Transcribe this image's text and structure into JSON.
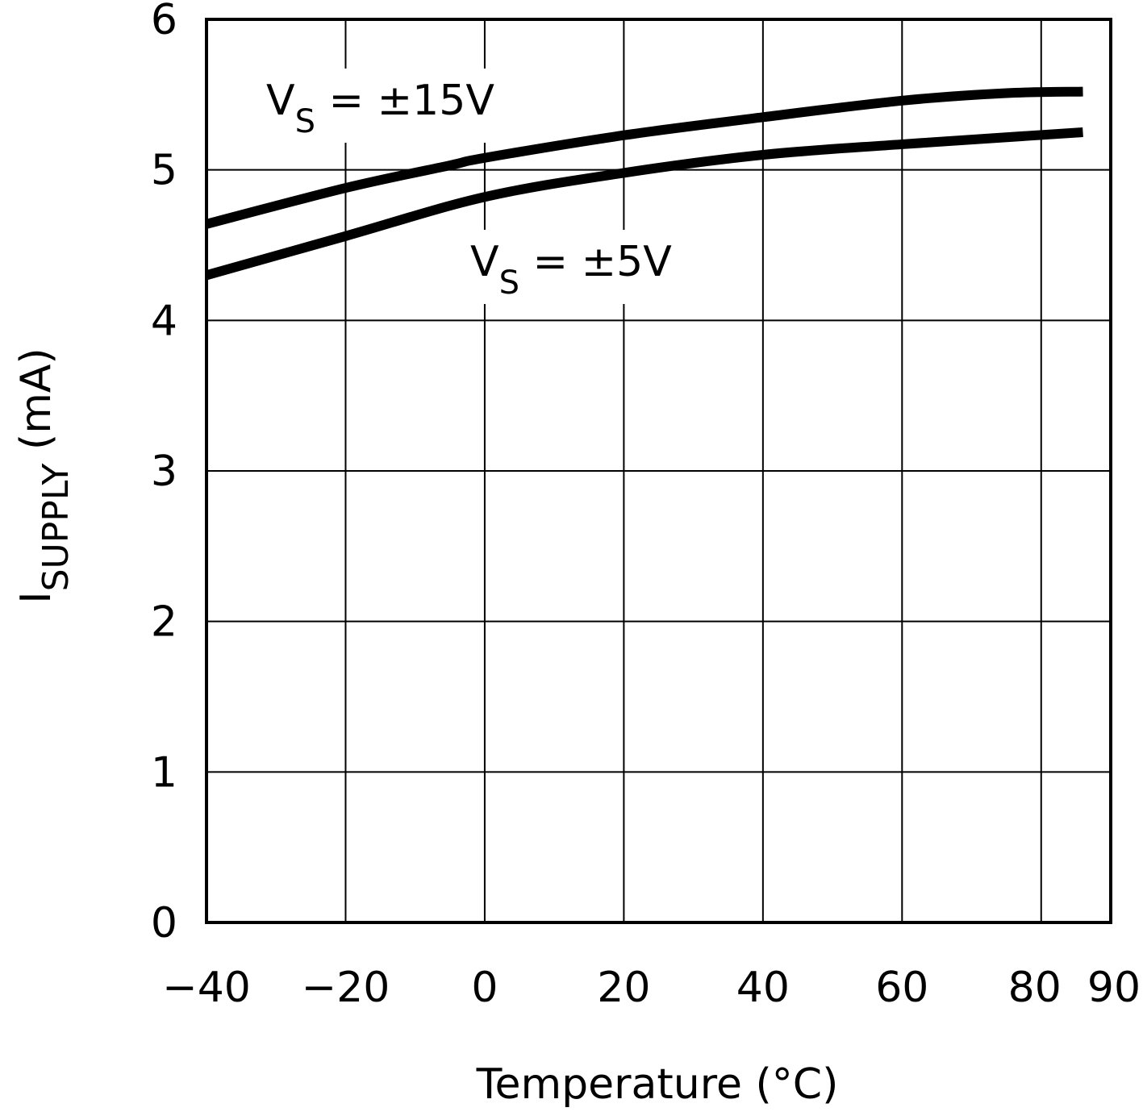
{
  "chart_data": {
    "type": "line",
    "title": "",
    "xlabel": "Temperature (°C)",
    "ylabel": {
      "main": "I",
      "subscript": "SUPPLY",
      "unit": " (mA)"
    },
    "xlim": [
      -40,
      90
    ],
    "ylim": [
      0,
      6
    ],
    "xticks": [
      -40,
      -20,
      0,
      20,
      40,
      60,
      80,
      90
    ],
    "yticks": [
      0,
      1,
      2,
      3,
      4,
      5,
      6
    ],
    "grid": true,
    "line_color": "#000000",
    "series": [
      {
        "name": {
          "main": "V",
          "subscript": "S",
          "rest": " = ±15V"
        },
        "x": [
          -40,
          -20,
          -5,
          0,
          20,
          40,
          60,
          75,
          86
        ],
        "y": [
          4.64,
          4.88,
          5.03,
          5.08,
          5.23,
          5.35,
          5.46,
          5.51,
          5.52
        ]
      },
      {
        "name": {
          "main": "V",
          "subscript": "S",
          "rest": " = ±5V"
        },
        "x": [
          -40,
          -20,
          0,
          20,
          40,
          60,
          86
        ],
        "y": [
          4.3,
          4.56,
          4.82,
          4.98,
          5.1,
          5.17,
          5.25
        ]
      }
    ]
  }
}
